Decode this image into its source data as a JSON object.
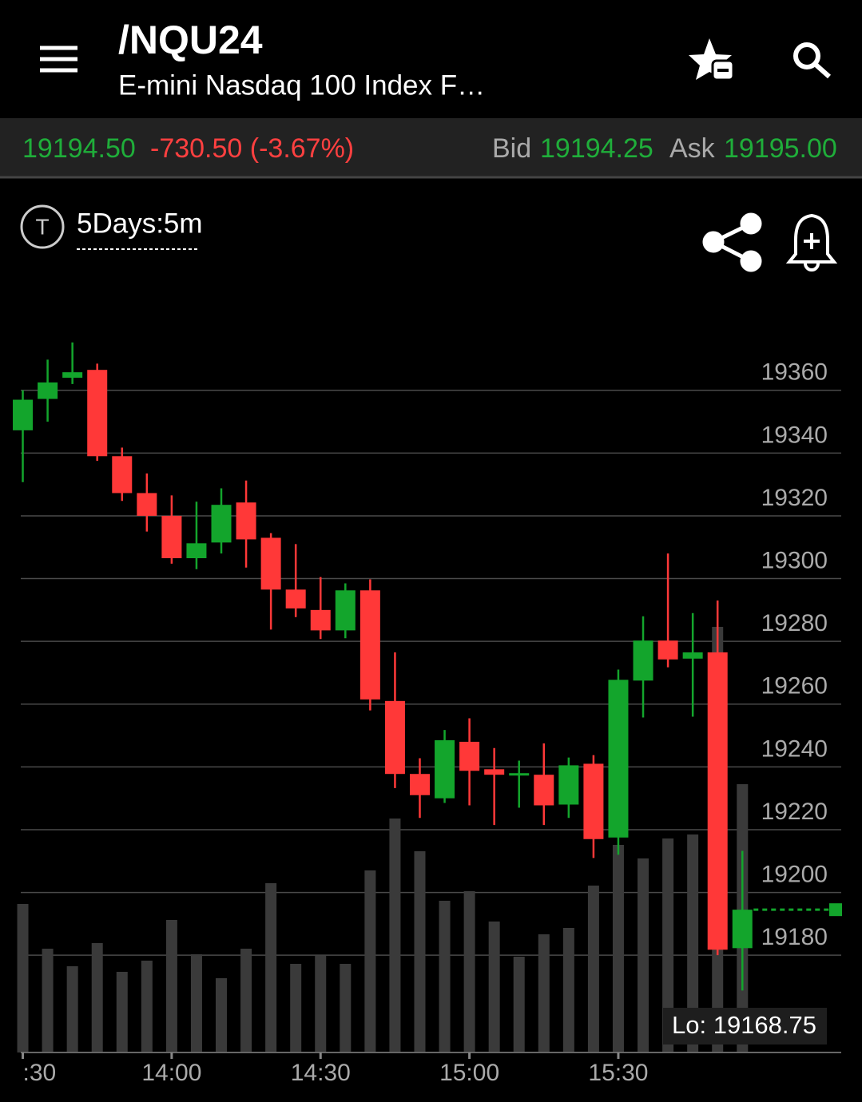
{
  "header": {
    "symbol": "/NQU24",
    "name": "E-mini Nasdaq 100 Index F…"
  },
  "quote": {
    "last": "19194.50",
    "change": "-730.50 (-3.67%)",
    "bid_label": "Bid",
    "bid": "19194.25",
    "ask_label": "Ask",
    "ask": "19195.00"
  },
  "toolbar": {
    "badge": "T",
    "period": "5Days:5m"
  },
  "chart_data": {
    "type": "candlestick",
    "categories": [
      ":30",
      null,
      null,
      null,
      null,
      null,
      "14:00",
      null,
      null,
      null,
      null,
      null,
      "14:30",
      null,
      null,
      null,
      null,
      null,
      "15:00",
      null,
      null,
      null,
      null,
      null,
      "15:30",
      null,
      null,
      null,
      null,
      null
    ],
    "open": [
      19347.25,
      19357.25,
      19364,
      19366.5,
      19339,
      19327.25,
      19320,
      19306.5,
      19311.5,
      19324.25,
      19313,
      19296.5,
      19290,
      19283.5,
      19296.25,
      19261,
      19237.75,
      19230,
      19248,
      19239.25,
      19237.25,
      19237.5,
      19228,
      19241,
      19217.5,
      19267.5,
      19280.25,
      19274.5,
      19276.5,
      19182.25
    ],
    "high": [
      19360,
      19369.75,
      19375.25,
      19368.5,
      19341.75,
      19333.5,
      19326.5,
      19324.5,
      19328.75,
      19331.25,
      19314.5,
      19311,
      19300.5,
      19298.5,
      19299.75,
      19276.5,
      19242.75,
      19251.75,
      19255.5,
      19246,
      19242,
      19247.5,
      19243,
      19243.75,
      19271,
      19288,
      19308,
      19289,
      19293,
      19213.25
    ],
    "low": [
      19330.75,
      19350,
      19362,
      19337.5,
      19324.75,
      19315,
      19304.75,
      19303,
      19308,
      19303.5,
      19283.75,
      19287.75,
      19280.75,
      19281,
      19258,
      19233.25,
      19223.75,
      19228.5,
      19227.75,
      19221.5,
      19227,
      19221.5,
      19223.75,
      19211,
      19212,
      19255.75,
      19271.75,
      19256,
      19180,
      19168.75
    ],
    "close": [
      19357,
      19362.5,
      19365.75,
      19339,
      19327.25,
      19320,
      19306.5,
      19311.25,
      19323.5,
      19312.5,
      19296.5,
      19290.5,
      19283.5,
      19296.25,
      19261.5,
      19237.75,
      19231,
      19248.5,
      19238.75,
      19237.5,
      19238,
      19227.75,
      19240.5,
      19217,
      19267.75,
      19280.25,
      19274.25,
      19276.5,
      19181.75,
      19194.5
    ],
    "volume": [
      186,
      130,
      108,
      137,
      101,
      115,
      166,
      123,
      93,
      130,
      212,
      111,
      121,
      111,
      228,
      293,
      252,
      190,
      202,
      164,
      120,
      148,
      156,
      209,
      260,
      243,
      268,
      273,
      533,
      336
    ],
    "up_color": "#13a52c",
    "down_color": "#ff3838",
    "volume_color": "#3a3a3a",
    "ylim": [
      19149,
      19378
    ],
    "yticks": [
      19180,
      19200,
      19220,
      19240,
      19260,
      19280,
      19300,
      19320,
      19340,
      19360
    ],
    "y2lim": [
      0,
      900
    ],
    "grid": true,
    "low_label": "Lo: 19168.75"
  }
}
